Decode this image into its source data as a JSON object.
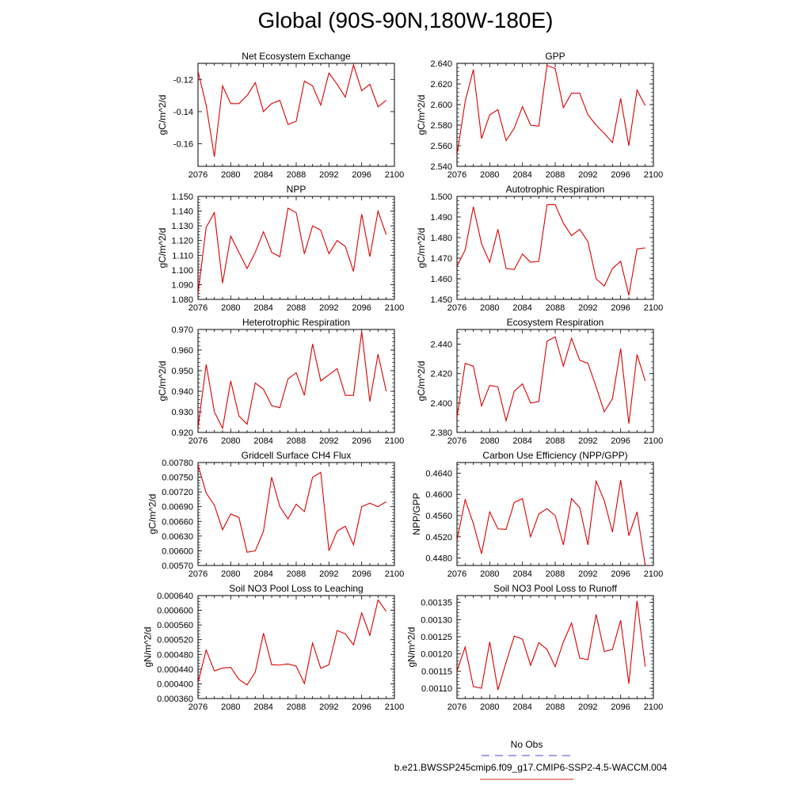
{
  "title": "Global (90S-90N,180W-180E)",
  "legend": {
    "obs_label": "No Obs",
    "obs_color": "#6c6cdc",
    "model_label": "b.e21.BWSSP245cmip6.f09_g17.CMIP6-SSP2-4.5-WACCM.004",
    "model_color": "#dd2222"
  },
  "series_color": "#dd0000",
  "chart_data": [
    {
      "type": "line",
      "title": "Net Ecosystem Exchange",
      "ylabel": "gC/m^2/d",
      "xlim": [
        2076,
        2100
      ],
      "ylim": [
        -0.174,
        -0.11
      ],
      "yticks": [
        -0.12,
        -0.14,
        -0.16
      ],
      "ytick_labels": [
        "-0.12",
        "-0.14",
        "-0.16"
      ],
      "xticks": [
        2076,
        2080,
        2084,
        2088,
        2092,
        2096,
        2100
      ],
      "x": [
        2076,
        2077,
        2078,
        2079,
        2080,
        2081,
        2082,
        2083,
        2084,
        2085,
        2086,
        2087,
        2088,
        2089,
        2090,
        2091,
        2092,
        2093,
        2094,
        2095,
        2096,
        2097,
        2098,
        2099
      ],
      "values": [
        -0.115,
        -0.136,
        -0.168,
        -0.124,
        -0.135,
        -0.135,
        -0.13,
        -0.122,
        -0.14,
        -0.135,
        -0.133,
        -0.148,
        -0.146,
        -0.121,
        -0.124,
        -0.136,
        -0.116,
        -0.123,
        -0.131,
        -0.111,
        -0.127,
        -0.123,
        -0.137,
        -0.133
      ]
    },
    {
      "type": "line",
      "title": "GPP",
      "ylabel": "gC/m^2/d",
      "xlim": [
        2076,
        2100
      ],
      "ylim": [
        2.54,
        2.64
      ],
      "yticks": [
        2.54,
        2.56,
        2.58,
        2.6,
        2.62,
        2.64
      ],
      "ytick_labels": [
        "2.540",
        "2.560",
        "2.580",
        "2.600",
        "2.620",
        "2.640"
      ],
      "xticks": [
        2076,
        2080,
        2084,
        2088,
        2092,
        2096,
        2100
      ],
      "x": [
        2076,
        2077,
        2078,
        2079,
        2080,
        2081,
        2082,
        2083,
        2084,
        2085,
        2086,
        2087,
        2088,
        2089,
        2090,
        2091,
        2092,
        2093,
        2094,
        2095,
        2096,
        2097,
        2098,
        2099
      ],
      "values": [
        2.551,
        2.603,
        2.634,
        2.567,
        2.59,
        2.595,
        2.565,
        2.577,
        2.598,
        2.58,
        2.579,
        2.638,
        2.635,
        2.597,
        2.611,
        2.611,
        2.59,
        2.58,
        2.572,
        2.563,
        2.606,
        2.56,
        2.614,
        2.599
      ]
    },
    {
      "type": "line",
      "title": "NPP",
      "ylabel": "gC/m^2/d",
      "xlim": [
        2076,
        2100
      ],
      "ylim": [
        1.08,
        1.15
      ],
      "yticks": [
        1.08,
        1.09,
        1.1,
        1.11,
        1.12,
        1.13,
        1.14,
        1.15
      ],
      "ytick_labels": [
        "1.080",
        "1.090",
        "1.100",
        "1.110",
        "1.120",
        "1.130",
        "1.140",
        "1.150"
      ],
      "xticks": [
        2076,
        2080,
        2084,
        2088,
        2092,
        2096,
        2100
      ],
      "x": [
        2076,
        2077,
        2078,
        2079,
        2080,
        2081,
        2082,
        2083,
        2084,
        2085,
        2086,
        2087,
        2088,
        2089,
        2090,
        2091,
        2092,
        2093,
        2094,
        2095,
        2096,
        2097,
        2098,
        2099
      ],
      "values": [
        1.084,
        1.129,
        1.139,
        1.091,
        1.123,
        1.112,
        1.101,
        1.112,
        1.126,
        1.112,
        1.109,
        1.142,
        1.139,
        1.111,
        1.13,
        1.127,
        1.111,
        1.12,
        1.116,
        1.099,
        1.138,
        1.109,
        1.14,
        1.124
      ]
    },
    {
      "type": "line",
      "title": "Autotrophic Respiration",
      "ylabel": "gC/m^2/d",
      "xlim": [
        2076,
        2100
      ],
      "ylim": [
        1.45,
        1.5
      ],
      "yticks": [
        1.45,
        1.46,
        1.47,
        1.48,
        1.49,
        1.5
      ],
      "ytick_labels": [
        "1.450",
        "1.460",
        "1.470",
        "1.480",
        "1.490",
        "1.500"
      ],
      "xticks": [
        2076,
        2080,
        2084,
        2088,
        2092,
        2096,
        2100
      ],
      "x": [
        2076,
        2077,
        2078,
        2079,
        2080,
        2081,
        2082,
        2083,
        2084,
        2085,
        2086,
        2087,
        2088,
        2089,
        2090,
        2091,
        2092,
        2093,
        2094,
        2095,
        2096,
        2097,
        2098,
        2099
      ],
      "values": [
        1.466,
        1.474,
        1.495,
        1.477,
        1.468,
        1.484,
        1.465,
        1.4645,
        1.472,
        1.468,
        1.4685,
        1.496,
        1.496,
        1.487,
        1.481,
        1.484,
        1.478,
        1.46,
        1.4565,
        1.465,
        1.4685,
        1.452,
        1.4745,
        1.475
      ]
    },
    {
      "type": "line",
      "title": "Heterotrophic Respiration",
      "ylabel": "gC/m^2/d",
      "xlim": [
        2076,
        2100
      ],
      "ylim": [
        0.92,
        0.97
      ],
      "yticks": [
        0.92,
        0.93,
        0.94,
        0.95,
        0.96,
        0.97
      ],
      "ytick_labels": [
        "0.920",
        "0.930",
        "0.940",
        "0.950",
        "0.960",
        "0.970"
      ],
      "xticks": [
        2076,
        2080,
        2084,
        2088,
        2092,
        2096,
        2100
      ],
      "x": [
        2076,
        2077,
        2078,
        2079,
        2080,
        2081,
        2082,
        2083,
        2084,
        2085,
        2086,
        2087,
        2088,
        2089,
        2090,
        2091,
        2092,
        2093,
        2094,
        2095,
        2096,
        2097,
        2098,
        2099
      ],
      "values": [
        0.922,
        0.953,
        0.93,
        0.922,
        0.945,
        0.928,
        0.924,
        0.944,
        0.941,
        0.933,
        0.932,
        0.946,
        0.949,
        0.938,
        0.963,
        0.945,
        0.948,
        0.951,
        0.938,
        0.938,
        0.969,
        0.935,
        0.958,
        0.94
      ]
    },
    {
      "type": "line",
      "title": "Ecosystem Respiration",
      "ylabel": "gC/m^2/d",
      "xlim": [
        2076,
        2100
      ],
      "ylim": [
        2.38,
        2.45
      ],
      "yticks": [
        2.38,
        2.4,
        2.42,
        2.44
      ],
      "ytick_labels": [
        "2.380",
        "2.400",
        "2.420",
        "2.440"
      ],
      "xticks": [
        2076,
        2080,
        2084,
        2088,
        2092,
        2096,
        2100
      ],
      "x": [
        2076,
        2077,
        2078,
        2079,
        2080,
        2081,
        2082,
        2083,
        2084,
        2085,
        2086,
        2087,
        2088,
        2089,
        2090,
        2091,
        2092,
        2093,
        2094,
        2095,
        2096,
        2097,
        2098,
        2099
      ],
      "values": [
        2.39,
        2.427,
        2.425,
        2.398,
        2.412,
        2.411,
        2.388,
        2.408,
        2.413,
        2.4,
        2.401,
        2.442,
        2.445,
        2.425,
        2.444,
        2.429,
        2.427,
        2.411,
        2.394,
        2.403,
        2.437,
        2.386,
        2.433,
        2.415
      ]
    },
    {
      "type": "line",
      "title": "Gridcell Surface CH4 Flux",
      "ylabel": "gC/m^2/d",
      "xlim": [
        2076,
        2100
      ],
      "ylim": [
        0.0057,
        0.0078
      ],
      "yticks": [
        0.0057,
        0.006,
        0.0063,
        0.0066,
        0.0069,
        0.0072,
        0.0075,
        0.0078
      ],
      "ytick_labels": [
        "0.00570",
        "0.00600",
        "0.00630",
        "0.00660",
        "0.00690",
        "0.00720",
        "0.00750",
        "0.00780"
      ],
      "xticks": [
        2076,
        2080,
        2084,
        2088,
        2092,
        2096,
        2100
      ],
      "x": [
        2076,
        2077,
        2078,
        2079,
        2080,
        2081,
        2082,
        2083,
        2084,
        2085,
        2086,
        2087,
        2088,
        2089,
        2090,
        2091,
        2092,
        2093,
        2094,
        2095,
        2096,
        2097,
        2098,
        2099
      ],
      "values": [
        0.00775,
        0.00718,
        0.00693,
        0.00643,
        0.00675,
        0.00668,
        0.00597,
        0.006,
        0.0064,
        0.0075,
        0.0069,
        0.00665,
        0.00695,
        0.0068,
        0.0075,
        0.0076,
        0.006,
        0.0064,
        0.0065,
        0.00612,
        0.0069,
        0.00697,
        0.0069,
        0.007
      ]
    },
    {
      "type": "line",
      "title": "Carbon Use Efficiency (NPP/GPP)",
      "ylabel": "NPP/GPP",
      "xlim": [
        2076,
        2100
      ],
      "ylim": [
        0.4466,
        0.466
      ],
      "yticks": [
        0.448,
        0.452,
        0.456,
        0.46,
        0.464
      ],
      "ytick_labels": [
        "0.4480",
        "0.4520",
        "0.4560",
        "0.4600",
        "0.4640"
      ],
      "xticks": [
        2076,
        2080,
        2084,
        2088,
        2092,
        2096,
        2100
      ],
      "x": [
        2076,
        2077,
        2078,
        2079,
        2080,
        2081,
        2082,
        2083,
        2084,
        2085,
        2086,
        2087,
        2088,
        2089,
        2090,
        2091,
        2092,
        2093,
        2094,
        2095,
        2096,
        2097,
        2098,
        2099
      ],
      "values": [
        0.4513,
        0.459,
        0.4545,
        0.4488,
        0.4567,
        0.4535,
        0.4534,
        0.4585,
        0.4592,
        0.452,
        0.4563,
        0.4573,
        0.456,
        0.4505,
        0.4592,
        0.4575,
        0.4505,
        0.4625,
        0.4588,
        0.4529,
        0.4627,
        0.4522,
        0.4567,
        0.4466
      ]
    },
    {
      "type": "line",
      "title": "Soil NO3 Pool Loss to Leaching",
      "ylabel": "gN/m^2/d",
      "xlim": [
        2076,
        2100
      ],
      "ylim": [
        0.00036,
        0.00064
      ],
      "yticks": [
        0.00036,
        0.0004,
        0.00044,
        0.00048,
        0.00052,
        0.00056,
        0.0006,
        0.00064
      ],
      "ytick_labels": [
        "0.000360",
        "0.000400",
        "0.000440",
        "0.000480",
        "0.000520",
        "0.000560",
        "0.000600",
        "0.000640"
      ],
      "xticks": [
        2076,
        2080,
        2084,
        2088,
        2092,
        2096,
        2100
      ],
      "x": [
        2076,
        2077,
        2078,
        2079,
        2080,
        2081,
        2082,
        2083,
        2084,
        2085,
        2086,
        2087,
        2088,
        2089,
        2090,
        2091,
        2092,
        2093,
        2094,
        2095,
        2096,
        2097,
        2098,
        2099
      ],
      "values": [
        0.000403,
        0.000492,
        0.000435,
        0.000443,
        0.000445,
        0.000412,
        0.000397,
        0.000432,
        0.000538,
        0.000452,
        0.000451,
        0.000454,
        0.000448,
        0.000401,
        0.000511,
        0.000442,
        0.000452,
        0.000545,
        0.000536,
        0.000506,
        0.000593,
        0.000532,
        0.000628,
        0.000597
      ]
    },
    {
      "type": "line",
      "title": "Soil NO3 Pool Loss to Runoff",
      "ylabel": "gN/m^2/d",
      "xlim": [
        2076,
        2100
      ],
      "ylim": [
        0.00107,
        0.00137
      ],
      "yticks": [
        0.0011,
        0.00115,
        0.0012,
        0.00125,
        0.0013,
        0.00135
      ],
      "ytick_labels": [
        "0.00110",
        "0.00115",
        "0.00120",
        "0.00125",
        "0.00130",
        "0.00135"
      ],
      "xticks": [
        2076,
        2080,
        2084,
        2088,
        2092,
        2096,
        2100
      ],
      "x": [
        2076,
        2077,
        2078,
        2079,
        2080,
        2081,
        2082,
        2083,
        2084,
        2085,
        2086,
        2087,
        2088,
        2089,
        2090,
        2091,
        2092,
        2093,
        2094,
        2095,
        2096,
        2097,
        2098,
        2099
      ],
      "values": [
        0.00115,
        0.00122,
        0.001105,
        0.0011,
        0.001235,
        0.001095,
        0.001175,
        0.001252,
        0.001243,
        0.001167,
        0.001233,
        0.001213,
        0.001163,
        0.001235,
        0.00129,
        0.001188,
        0.001183,
        0.001315,
        0.001207,
        0.001213,
        0.001298,
        0.001113,
        0.001355,
        0.001163
      ]
    }
  ]
}
